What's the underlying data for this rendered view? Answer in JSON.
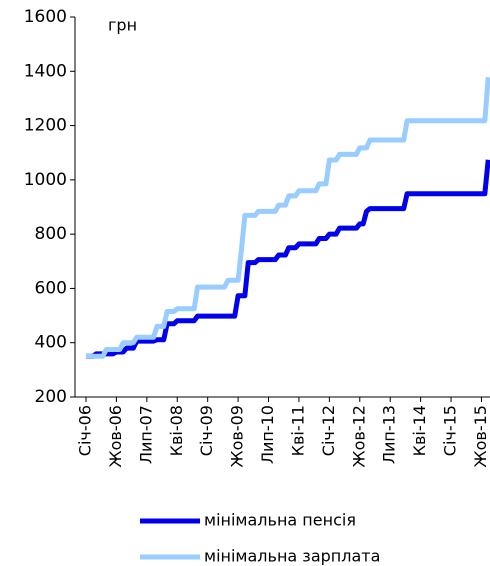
{
  "chart_data": {
    "type": "line",
    "y_unit": "грн",
    "categories": [
      "Січ-06",
      null,
      null,
      null,
      null,
      null,
      null,
      null,
      null,
      "Жов-06",
      null,
      null,
      null,
      null,
      null,
      null,
      null,
      null,
      "Лип-07",
      null,
      null,
      null,
      null,
      null,
      null,
      null,
      null,
      "Кві-08",
      null,
      null,
      null,
      null,
      null,
      null,
      null,
      null,
      "Січ-09",
      null,
      null,
      null,
      null,
      null,
      null,
      null,
      null,
      "Жов-09",
      null,
      null,
      null,
      null,
      null,
      null,
      null,
      null,
      "Лип-10",
      null,
      null,
      null,
      null,
      null,
      null,
      null,
      null,
      "Кві-11",
      null,
      null,
      null,
      null,
      null,
      null,
      null,
      null,
      "Січ-12",
      null,
      null,
      null,
      null,
      null,
      null,
      null,
      null,
      "Жов-12",
      null,
      null,
      null,
      null,
      null,
      null,
      null,
      null,
      "Лип-13",
      null,
      null,
      null,
      null,
      null,
      null,
      null,
      null,
      "Кві-14",
      null,
      null,
      null,
      null,
      null,
      null,
      null,
      null,
      "Січ-15",
      null,
      null,
      null,
      null,
      null,
      null,
      null,
      null,
      "Жов-15",
      null,
      null
    ],
    "series": [
      {
        "name": "мінімальна пенсія",
        "color": "#0000ee",
        "values": [
          350,
          350,
          350,
          359,
          359,
          359,
          359,
          359,
          359,
          366,
          366,
          366,
          380,
          380,
          380,
          406,
          406,
          406,
          406,
          406,
          406,
          411,
          411,
          411,
          470,
          470,
          470,
          481,
          481,
          481,
          481,
          481,
          481,
          498,
          498,
          498,
          498,
          498,
          498,
          498,
          498,
          498,
          498,
          498,
          498,
          573,
          573,
          573,
          695,
          695,
          695,
          706,
          706,
          706,
          706,
          706,
          706,
          723,
          723,
          723,
          750,
          750,
          750,
          764,
          764,
          764,
          764,
          764,
          764,
          784,
          784,
          784,
          800,
          800,
          800,
          822,
          822,
          822,
          822,
          822,
          822,
          838,
          838,
          884,
          894,
          894,
          894,
          894,
          894,
          894,
          894,
          894,
          894,
          894,
          894,
          949,
          949,
          949,
          949,
          949,
          949,
          949,
          949,
          949,
          949,
          949,
          949,
          949,
          949,
          949,
          949,
          949,
          949,
          949,
          949,
          949,
          949,
          949,
          949,
          1074
        ]
      },
      {
        "name": "мінімальна зарплата",
        "color": "#99ccff",
        "values": [
          350,
          350,
          350,
          350,
          350,
          350,
          375,
          375,
          375,
          375,
          375,
          400,
          400,
          400,
          400,
          420,
          420,
          420,
          420,
          420,
          420,
          460,
          460,
          460,
          515,
          515,
          515,
          525,
          525,
          525,
          525,
          525,
          525,
          605,
          605,
          605,
          605,
          605,
          605,
          605,
          605,
          605,
          630,
          630,
          630,
          630,
          744,
          869,
          869,
          869,
          869,
          884,
          884,
          884,
          884,
          884,
          884,
          907,
          907,
          907,
          941,
          941,
          941,
          960,
          960,
          960,
          960,
          960,
          960,
          985,
          985,
          985,
          1073,
          1073,
          1073,
          1094,
          1094,
          1094,
          1094,
          1094,
          1094,
          1118,
          1118,
          1118,
          1147,
          1147,
          1147,
          1147,
          1147,
          1147,
          1147,
          1147,
          1147,
          1147,
          1147,
          1218,
          1218,
          1218,
          1218,
          1218,
          1218,
          1218,
          1218,
          1218,
          1218,
          1218,
          1218,
          1218,
          1218,
          1218,
          1218,
          1218,
          1218,
          1218,
          1218,
          1218,
          1218,
          1218,
          1218,
          1378
        ]
      }
    ],
    "ylim": [
      200,
      1600
    ],
    "yticks": [
      200,
      400,
      600,
      800,
      1000,
      1200,
      1400,
      1600
    ],
    "grid": false,
    "legend": "bottom"
  }
}
